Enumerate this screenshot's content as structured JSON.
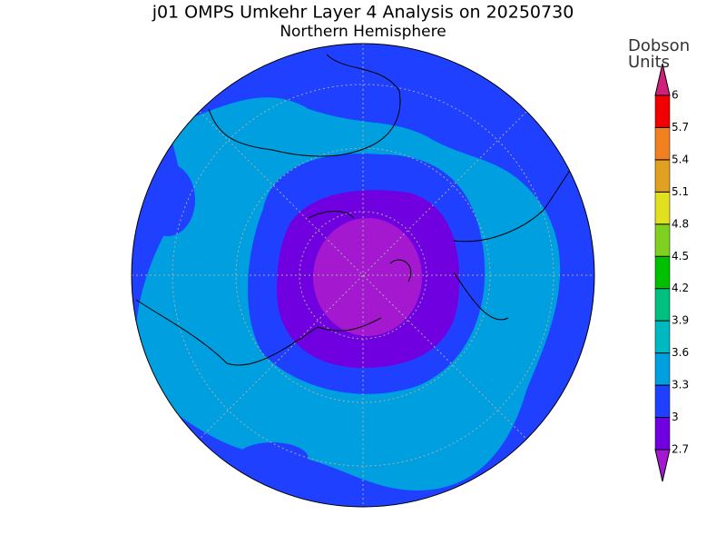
{
  "title": "j01 OMPS Umkehr Layer 4 Analysis on 20250730",
  "subtitle": "Northern Hemisphere",
  "colorbar": {
    "label_lines": [
      "Dobson",
      "Units"
    ],
    "levels": [
      2.7,
      3,
      3.3,
      3.6,
      3.9,
      4.2,
      4.5,
      4.8,
      5.1,
      5.4,
      5.7,
      6
    ],
    "colors": [
      "#a418d0",
      "#7000e0",
      "#2040ff",
      "#00a0e0",
      "#00b8c0",
      "#00c080",
      "#00c000",
      "#80d020",
      "#e0e020",
      "#e0a020",
      "#f08020",
      "#f00000",
      "#d0207a"
    ]
  }
}
